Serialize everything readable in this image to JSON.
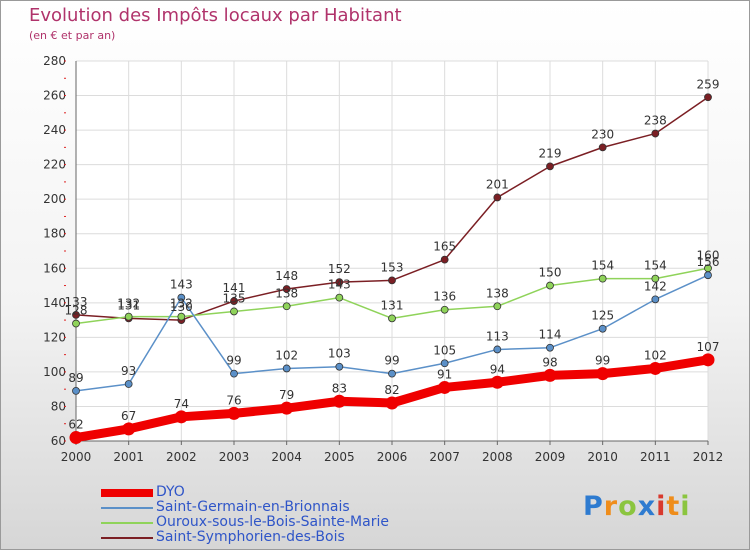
{
  "title": "Evolution des Impôts locaux par Habitant",
  "subtitle": "(en € et par an)",
  "logo": {
    "letters": [
      "P",
      "r",
      "o",
      "x",
      "i",
      "t",
      "i"
    ],
    "colors": [
      "#2e7bd0",
      "#ef8d1b",
      "#8bc53f",
      "#2e7bd0",
      "#d83a2e",
      "#ef8d1b",
      "#8bc53f"
    ]
  },
  "chart_data": {
    "type": "line",
    "x": [
      2000,
      2001,
      2002,
      2003,
      2004,
      2005,
      2006,
      2007,
      2008,
      2009,
      2010,
      2011,
      2012
    ],
    "ylim": [
      60,
      280
    ],
    "yticks": [
      60,
      80,
      100,
      120,
      140,
      160,
      180,
      200,
      220,
      240,
      260,
      280
    ],
    "grid": true,
    "legend_position": "bottom-left",
    "series": [
      {
        "name": "Saint-Symphorien-des-Bois",
        "color": "#7b1f24",
        "values": [
          133,
          131,
          130,
          141,
          148,
          152,
          153,
          165,
          201,
          219,
          230,
          238,
          259
        ],
        "labels": [
          "133",
          "131",
          "130",
          "141",
          "148",
          "152",
          "153",
          "165",
          "201",
          "219",
          "230",
          "238",
          "259"
        ]
      },
      {
        "name": "Ouroux-sous-le-Bois-Sainte-Marie",
        "color": "#8fd35a",
        "values": [
          128,
          132,
          132,
          135,
          138,
          143,
          131,
          136,
          138,
          150,
          154,
          154,
          160
        ],
        "labels": [
          "128",
          "132",
          "132",
          "135",
          "138",
          "143",
          "131",
          "136",
          "138",
          "150",
          "154",
          "154",
          "160"
        ]
      },
      {
        "name": "Saint-Germain-en-Brionnais",
        "color": "#5b90c8",
        "values": [
          89,
          93,
          143,
          99,
          102,
          103,
          99,
          105,
          113,
          114,
          125,
          142,
          156
        ],
        "labels": [
          "89",
          "93",
          "143",
          "99",
          "102",
          "103",
          "99",
          "105",
          "113",
          "114",
          "125",
          "142",
          "156"
        ]
      },
      {
        "name": "DYO",
        "color": "#ef0000",
        "values": [
          62,
          67,
          74,
          76,
          79,
          83,
          82,
          91,
          94,
          98,
          99,
          102,
          107
        ],
        "labels": [
          "62",
          "67",
          "74",
          "76",
          "79",
          "83",
          "82",
          "91",
          "94",
          "98",
          "99",
          "102",
          "107"
        ]
      }
    ],
    "legend": [
      {
        "name": "DYO",
        "color": "#ef0000"
      },
      {
        "name": "Saint-Germain-en-Brionnais",
        "color": "#5b90c8"
      },
      {
        "name": "Ouroux-sous-le-Bois-Sainte-Marie",
        "color": "#8fd35a"
      },
      {
        "name": "Saint-Symphorien-des-Bois",
        "color": "#7b1f24"
      }
    ]
  }
}
